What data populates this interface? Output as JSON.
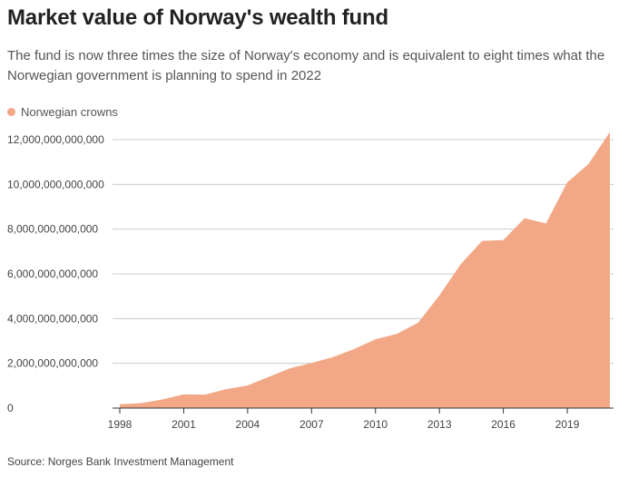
{
  "title": "Market value of Norway's wealth fund",
  "subtitle": "The fund is now three times the size of Norway's economy and is equivalent to eight times what the Norwegian government is planning to spend in 2022",
  "source": "Source: Norges Bank Investment Management",
  "colors": {
    "area": "#f2a886",
    "grid": "#cccccc",
    "axis": "#333333"
  },
  "chart_data": {
    "type": "area",
    "title": "Market value of Norway's wealth fund",
    "xlabel": "",
    "ylabel": "",
    "grid": true,
    "legend_position": "top-left",
    "xlim": [
      1998,
      2021
    ],
    "ylim": [
      0,
      12000000000000
    ],
    "x_ticks": [
      1998,
      2001,
      2004,
      2007,
      2010,
      2013,
      2016,
      2019
    ],
    "x_tick_labels": [
      "1998",
      "2001",
      "2004",
      "2007",
      "2010",
      "2013",
      "2016",
      "2019"
    ],
    "y_ticks": [
      0,
      2000000000000,
      4000000000000,
      6000000000000,
      8000000000000,
      10000000000000,
      12000000000000
    ],
    "y_tick_labels": [
      "0",
      "2,000,000,000,000",
      "4,000,000,000,000",
      "6,000,000,000,000",
      "8,000,000,000,000",
      "10,000,000,000,000",
      "12,000,000,000,000"
    ],
    "series": [
      {
        "name": "Norwegian crowns",
        "x": [
          1998,
          1999,
          2000,
          2001,
          2002,
          2003,
          2004,
          2005,
          2006,
          2007,
          2008,
          2009,
          2010,
          2011,
          2012,
          2013,
          2014,
          2015,
          2016,
          2017,
          2018,
          2019,
          2020,
          2021
        ],
        "values": [
          172000000000,
          222000000000,
          386000000000,
          614000000000,
          604000000000,
          845000000000,
          1016000000000,
          1399000000000,
          1784000000000,
          2019000000000,
          2275000000000,
          2640000000000,
          3077000000000,
          3312000000000,
          3816000000000,
          5038000000000,
          6431000000000,
          7475000000000,
          7510000000000,
          8488000000000,
          8256000000000,
          10088000000000,
          10914000000000,
          12340000000000
        ]
      }
    ]
  }
}
